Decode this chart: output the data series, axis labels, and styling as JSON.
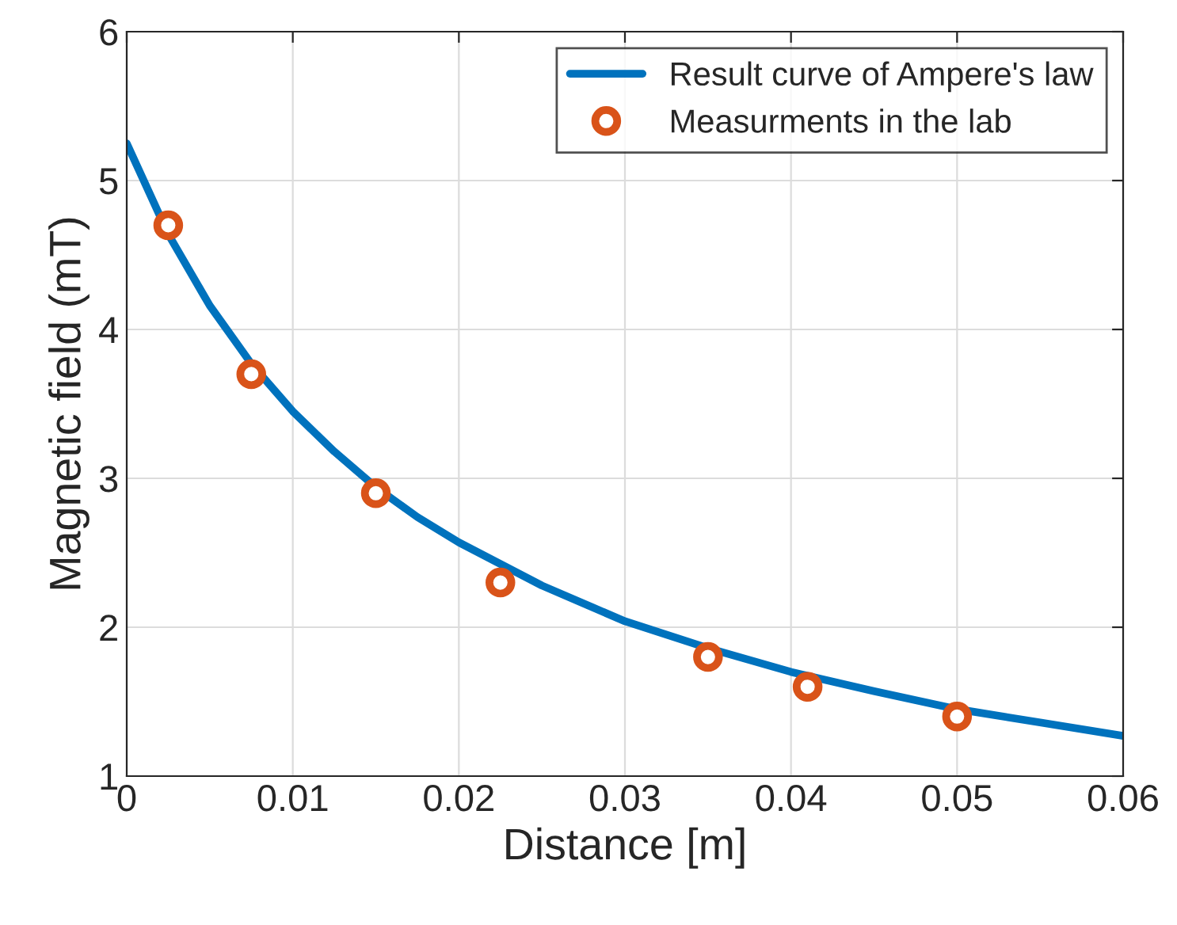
{
  "chart_data": {
    "type": "line",
    "xlabel": "Distance [m]",
    "ylabel": "Magnetic field (mT)",
    "xlim": [
      0,
      0.06
    ],
    "ylim": [
      1,
      6
    ],
    "xticks": [
      0,
      0.01,
      0.02,
      0.03,
      0.04,
      0.05,
      0.06
    ],
    "yticks": [
      1,
      2,
      3,
      4,
      5,
      6
    ],
    "grid": true,
    "legend": "top right",
    "series": [
      {
        "name": "Result curve of Ampere's law",
        "color": "#0072bd",
        "marker": "none",
        "line_style": "solid",
        "x": [
          0,
          0.0025,
          0.005,
          0.0075,
          0.01,
          0.0125,
          0.015,
          0.0175,
          0.02,
          0.025,
          0.03,
          0.035,
          0.04,
          0.045,
          0.05,
          0.055,
          0.06
        ],
        "values": [
          5.25,
          4.64,
          4.16,
          3.77,
          3.45,
          3.18,
          2.94,
          2.74,
          2.57,
          2.28,
          2.04,
          1.86,
          1.7,
          1.57,
          1.45,
          1.36,
          1.27
        ]
      },
      {
        "name": "Measurments in the lab",
        "type": "scatter",
        "color": "#d95319",
        "marker": "circle",
        "x": [
          0.0025,
          0.0075,
          0.015,
          0.0225,
          0.035,
          0.041,
          0.05
        ],
        "values": [
          4.7,
          3.7,
          2.9,
          2.3,
          1.8,
          1.6,
          1.4
        ]
      }
    ]
  }
}
